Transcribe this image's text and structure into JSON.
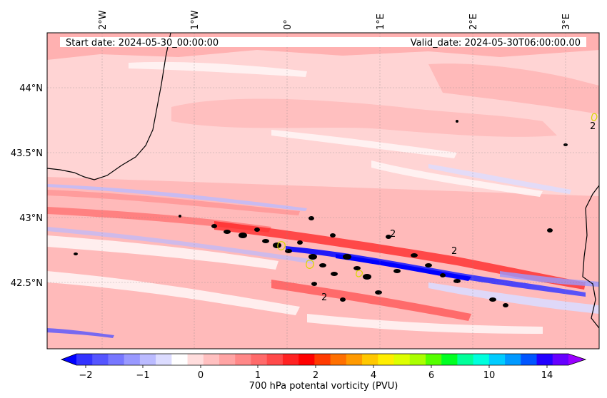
{
  "map": {
    "start_label": "Start date: 2024-05-30_00:00:00",
    "valid_label": "Valid_date: 2024-05-30T06:00:00.00",
    "lon_ticks": [
      "2°W",
      "1°W",
      "0°",
      "1°E",
      "2°E",
      "3°E"
    ],
    "lat_ticks": [
      "44°N",
      "43.5°N",
      "43°N",
      "42.5°N"
    ],
    "contour_labels": [
      "2",
      "2",
      "2",
      "2"
    ]
  },
  "colorbar": {
    "label": "700 hPa potental vorticity (PVU)",
    "tick_labels": [
      "−2",
      "−1",
      "0",
      "1",
      "2",
      "4",
      "6",
      "10",
      "14"
    ],
    "colors": [
      "#0000ff",
      "#3333ff",
      "#5555ff",
      "#7777ff",
      "#9999ff",
      "#bbbbff",
      "#dcdcff",
      "#ffffff",
      "#ffdddd",
      "#ffc0c0",
      "#ffa4a4",
      "#ff8888",
      "#ff6a6a",
      "#ff4a4a",
      "#ff2222",
      "#ff0000",
      "#ff3a00",
      "#ff7000",
      "#ff9a00",
      "#ffc800",
      "#ffee00",
      "#ddff00",
      "#aaff00",
      "#55ff00",
      "#00ff22",
      "#00ff99",
      "#00ffdd",
      "#00ccff",
      "#0099ff",
      "#0055ff",
      "#2200ff",
      "#6600ff",
      "#9900ff"
    ]
  }
}
